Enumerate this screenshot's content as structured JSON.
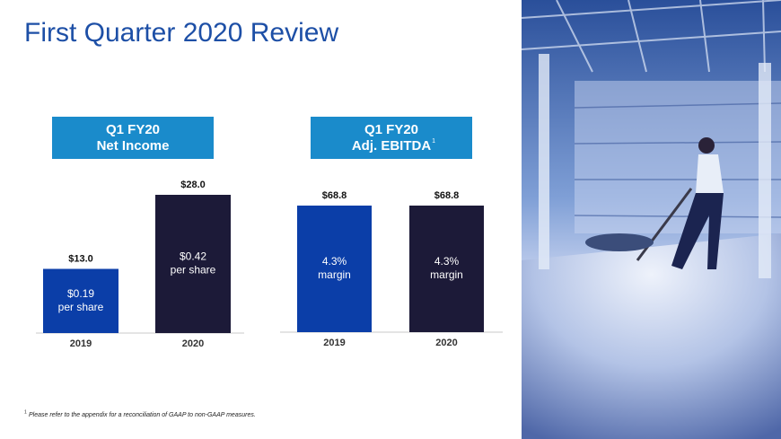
{
  "title": "First Quarter 2020 Review",
  "footnote": {
    "marker": "1",
    "text": "Please refer to the appendix for a reconciliation of GAAP to non-GAAP measures."
  },
  "chart_data": [
    {
      "type": "bar",
      "title": "Q1 FY20",
      "subtitle": "Net Income",
      "categories": [
        "2019",
        "2020"
      ],
      "values": [
        13.0,
        28.0
      ],
      "value_labels": [
        "$13.0",
        "$28.0"
      ],
      "bar_labels": [
        [
          "$0.19",
          "per share"
        ],
        [
          "$0.42",
          "per share"
        ]
      ],
      "colors": [
        "#0b3ea8",
        "#1c1a38"
      ],
      "header_color": "#1a8bcb"
    },
    {
      "type": "bar",
      "title": "Q1 FY20",
      "subtitle": "Adj. EBITDA",
      "subtitle_note": "1",
      "categories": [
        "2019",
        "2020"
      ],
      "values": [
        68.8,
        68.8
      ],
      "value_labels": [
        "$68.8",
        "$68.8"
      ],
      "bar_labels": [
        [
          "4.3%",
          "margin"
        ],
        [
          "4.3%",
          "margin"
        ]
      ],
      "colors": [
        "#0b3ea8",
        "#1c1a38"
      ],
      "header_color": "#1a8bcb"
    }
  ]
}
